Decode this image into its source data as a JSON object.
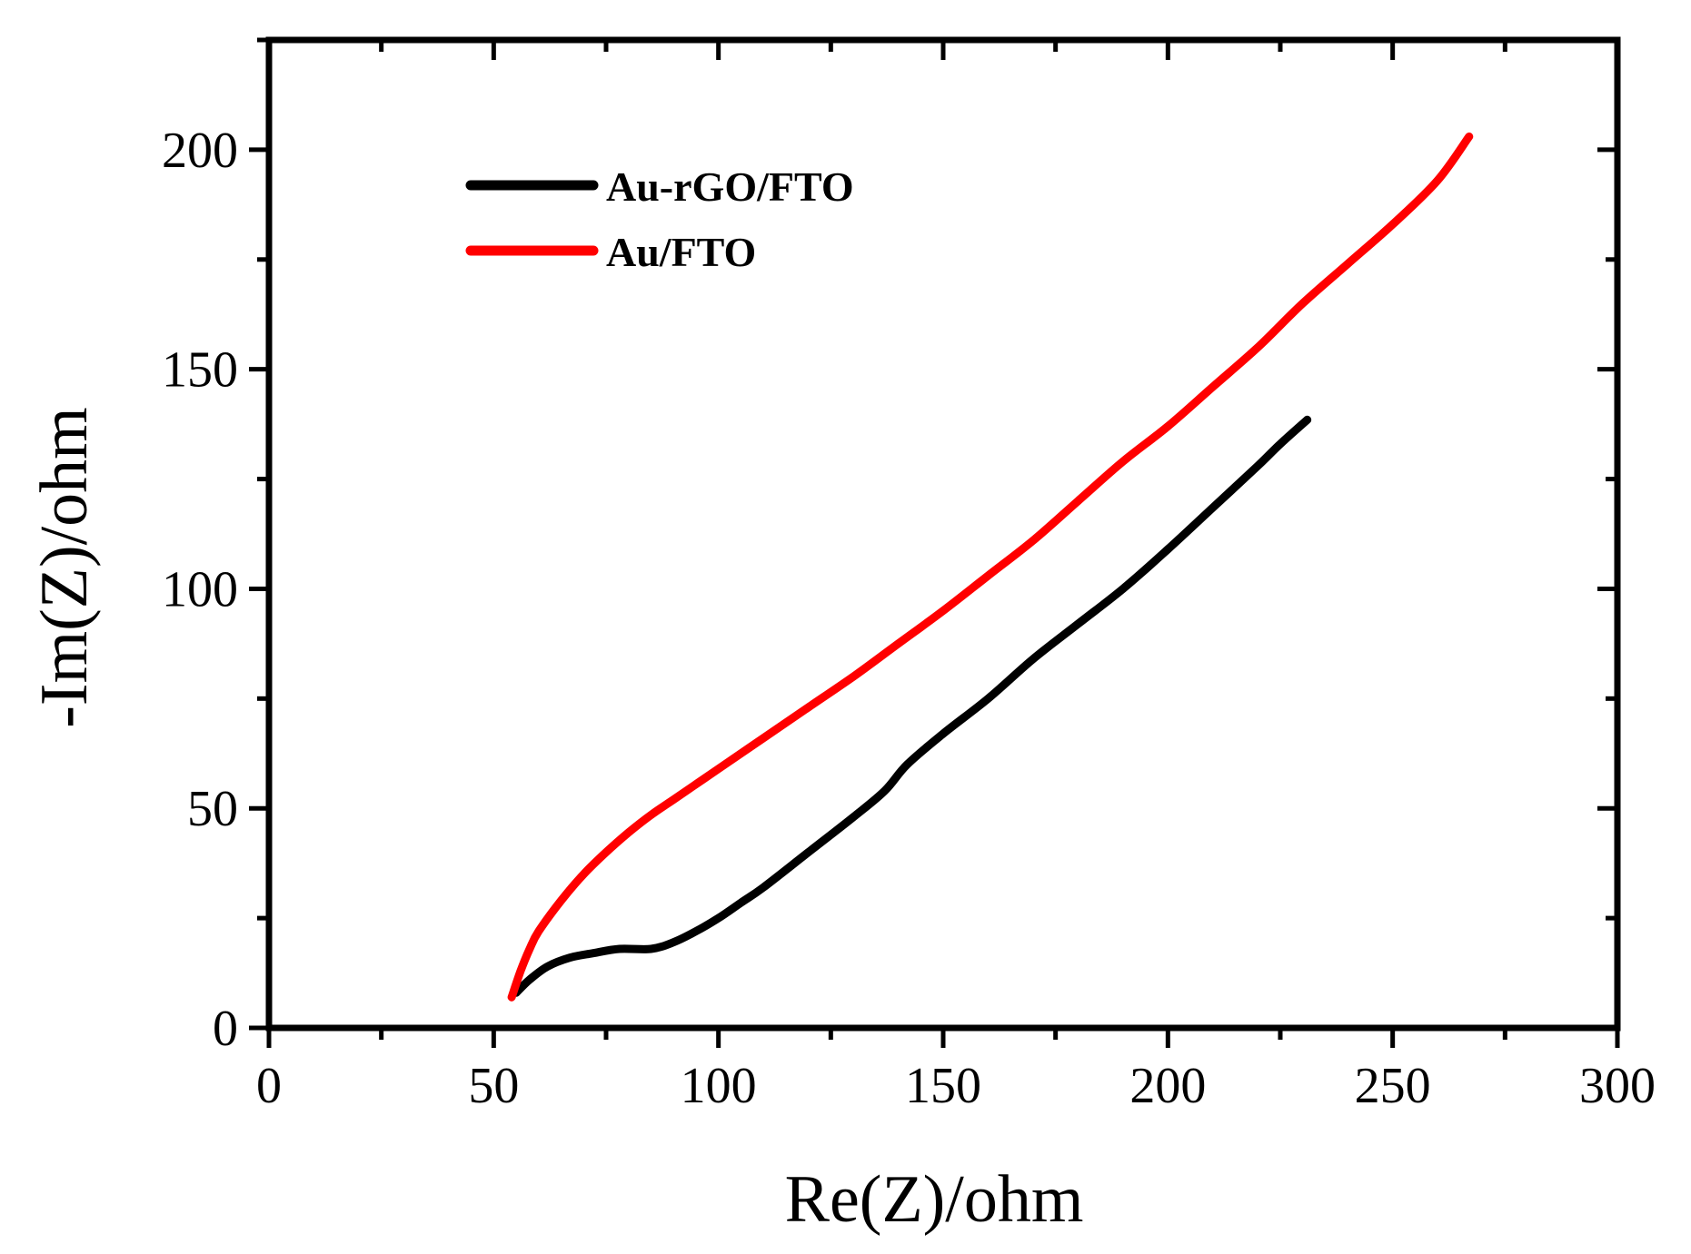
{
  "chart_data": {
    "type": "line",
    "title": "",
    "xlabel": "Re(Z)/ohm",
    "ylabel": "-Im(Z)/ohm",
    "xlim": [
      0,
      300
    ],
    "ylim": [
      0,
      225
    ],
    "x_ticks": [
      0,
      50,
      100,
      150,
      200,
      250,
      300
    ],
    "y_ticks": [
      0,
      50,
      100,
      150,
      200
    ],
    "x_tick_labels": [
      "0",
      "50",
      "100",
      "150",
      "200",
      "250",
      "300"
    ],
    "y_tick_labels": [
      "0",
      "50",
      "100",
      "150",
      "200"
    ],
    "legend_position": "top-left",
    "series": [
      {
        "name": "Au-rGO/FTO",
        "color": "#000000",
        "points": [
          [
            55,
            8
          ],
          [
            58,
            11
          ],
          [
            62,
            14
          ],
          [
            67,
            16
          ],
          [
            72,
            17
          ],
          [
            78,
            18
          ],
          [
            85,
            18
          ],
          [
            90,
            19.5
          ],
          [
            95,
            22
          ],
          [
            100,
            25
          ],
          [
            105,
            28.5
          ],
          [
            110,
            32
          ],
          [
            120,
            40
          ],
          [
            130,
            48
          ],
          [
            137,
            54
          ],
          [
            142,
            60
          ],
          [
            150,
            67
          ],
          [
            160,
            75
          ],
          [
            170,
            84
          ],
          [
            180,
            92
          ],
          [
            190,
            100
          ],
          [
            200,
            109
          ],
          [
            210,
            118.5
          ],
          [
            220,
            128
          ],
          [
            225,
            133
          ],
          [
            231,
            138.5
          ]
        ]
      },
      {
        "name": "Au/FTO",
        "color": "#ff0000",
        "points": [
          [
            54,
            7
          ],
          [
            56,
            13
          ],
          [
            58,
            18
          ],
          [
            60,
            22
          ],
          [
            65,
            29
          ],
          [
            70,
            35
          ],
          [
            75,
            40
          ],
          [
            80,
            44.5
          ],
          [
            85,
            48.5
          ],
          [
            90,
            52
          ],
          [
            100,
            59
          ],
          [
            110,
            66
          ],
          [
            120,
            73
          ],
          [
            130,
            80
          ],
          [
            140,
            87.5
          ],
          [
            150,
            95
          ],
          [
            160,
            103
          ],
          [
            170,
            111
          ],
          [
            180,
            120
          ],
          [
            190,
            129
          ],
          [
            200,
            137
          ],
          [
            210,
            146
          ],
          [
            220,
            155
          ],
          [
            230,
            165
          ],
          [
            240,
            174
          ],
          [
            250,
            183
          ],
          [
            260,
            193
          ],
          [
            267,
            203
          ]
        ]
      }
    ]
  }
}
